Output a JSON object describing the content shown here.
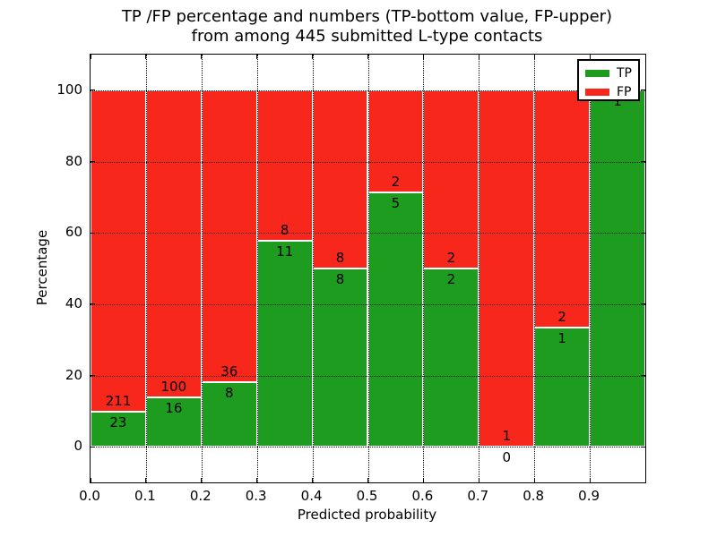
{
  "title": {
    "line1": "TP /FP percentage and numbers (TP-bottom value, FP-upper)",
    "line2": "from among 445 submitted L-type contacts"
  },
  "axes": {
    "xlabel": "Predicted probability",
    "ylabel": "Percentage"
  },
  "legend": {
    "items": [
      {
        "label": "TP",
        "color": "#1e9c20"
      },
      {
        "label": "FP",
        "color": "#f8271c"
      }
    ]
  },
  "colors": {
    "tp_green": "#1e9c20",
    "fp_red": "#f8271c",
    "frame": "#000000",
    "background": "#ffffff"
  },
  "chart_data": {
    "type": "bar",
    "stacked": true,
    "unit": "percent of bin (TP+FP normalized to 100)",
    "title": "TP /FP percentage and numbers (TP-bottom value, FP-upper) from among 445 submitted L-type contacts",
    "xlabel": "Predicted probability",
    "ylabel": "Percentage",
    "total_contacts": 445,
    "bin_edges": [
      0.0,
      0.1,
      0.2,
      0.3,
      0.4,
      0.5,
      0.6,
      0.7,
      0.8,
      0.9,
      1.0
    ],
    "categories": [
      "0.0-0.1",
      "0.1-0.2",
      "0.2-0.3",
      "0.3-0.4",
      "0.4-0.5",
      "0.5-0.6",
      "0.6-0.7",
      "0.7-0.8",
      "0.8-0.9",
      "0.9-1.0"
    ],
    "series": [
      {
        "name": "TP",
        "color": "#1e9c20",
        "counts": [
          23,
          16,
          8,
          11,
          8,
          5,
          2,
          0,
          1,
          1
        ],
        "percent": [
          9.83,
          13.79,
          18.18,
          57.89,
          50.0,
          71.43,
          50.0,
          0.0,
          33.33,
          100.0
        ]
      },
      {
        "name": "FP",
        "color": "#f8271c",
        "counts": [
          211,
          100,
          36,
          8,
          8,
          2,
          2,
          1,
          2,
          0
        ],
        "percent": [
          90.17,
          86.21,
          81.82,
          42.11,
          50.0,
          28.57,
          50.0,
          100.0,
          66.67,
          0.0
        ]
      }
    ],
    "bar_number_labels": {
      "fp": [
        "211",
        "100",
        "36",
        "8",
        "8",
        "2",
        "2",
        "1",
        "2",
        ""
      ],
      "tp": [
        "23",
        "16",
        "8",
        "11",
        "8",
        "5",
        "2",
        "0",
        "1",
        "1"
      ]
    },
    "yticks": [
      0,
      20,
      40,
      60,
      80,
      100
    ],
    "xtick_labels": [
      "0.0",
      "0.1",
      "0.2",
      "0.3",
      "0.4",
      "0.5",
      "0.6",
      "0.7",
      "0.8",
      "0.9"
    ],
    "xtick_values": [
      0.0,
      0.1,
      0.2,
      0.3,
      0.4,
      0.5,
      0.6,
      0.7,
      0.8,
      0.9
    ],
    "ylim": [
      -10,
      110
    ],
    "xlim": [
      0,
      1
    ],
    "grid": true,
    "grid_style": "dotted, drawn above bars",
    "legend_position": "upper right"
  }
}
